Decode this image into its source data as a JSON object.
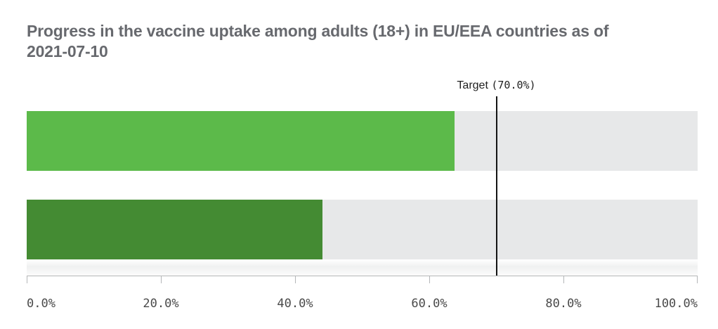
{
  "header": {
    "title_line1": "Progress in the vaccine uptake among adults (18+) in EU/EEA countries as of",
    "title_line2": "2021-07-10"
  },
  "chart_data": {
    "type": "bar",
    "orientation": "horizontal",
    "title": "Progress in the vaccine uptake among adults (18+) in EU/EEA countries as of 2021-07-10",
    "series": [
      {
        "value": 63.8,
        "display": "63.8%",
        "color": "#5cba4a"
      },
      {
        "value": 44.1,
        "display": "44.1%",
        "color": "#448b33"
      }
    ],
    "target": {
      "label": "Target",
      "display": "(70.0%)",
      "value": 70.0
    },
    "x_axis": {
      "min": 0,
      "max": 100,
      "tick_values": [
        0,
        20,
        40,
        60,
        80,
        100
      ],
      "tick_labels": [
        "0.0%",
        "20.0%",
        "40.0%",
        "60.0%",
        "80.0%",
        "100.0%"
      ]
    },
    "layout": {
      "track_color": "#e7e8e9",
      "target_line_color": "#141414",
      "grid": false,
      "legend": false
    }
  }
}
